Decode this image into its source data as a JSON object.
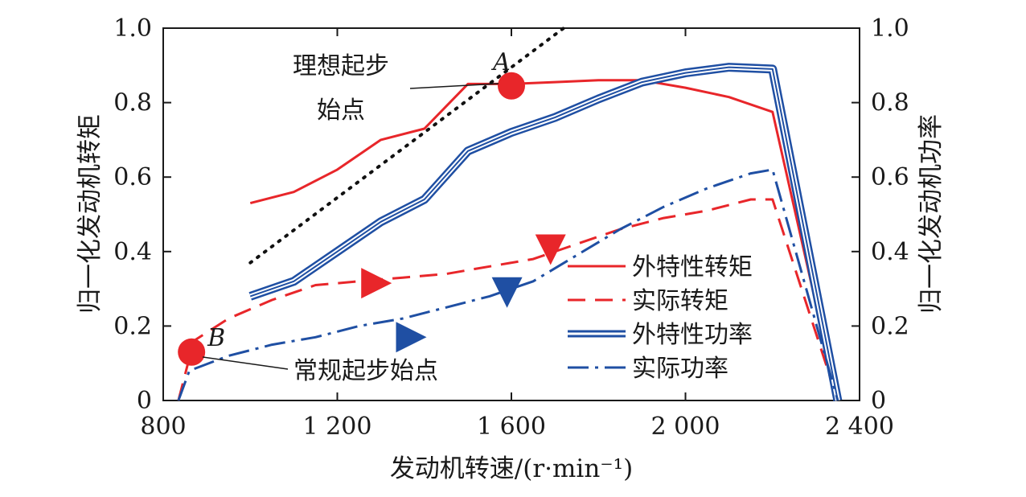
{
  "chart_data": {
    "type": "line",
    "xlabel": "发动机转速/(r·min⁻¹)",
    "ylabel_left": "归一化发动机转矩",
    "ylabel_right": "归一化发动机功率",
    "xlim": [
      800,
      2400
    ],
    "ylim": [
      0,
      1.0
    ],
    "x_ticks": [
      800,
      1200,
      1600,
      2000,
      2400
    ],
    "x_tick_labels": [
      "800",
      "1 200",
      "1 600",
      "2 000",
      "2 400"
    ],
    "y_ticks": [
      0,
      0.2,
      0.4,
      0.6,
      0.8,
      1.0
    ],
    "y_tick_labels": [
      "0",
      "0.2",
      "0.4",
      "0.6",
      "0.8",
      "1.0"
    ],
    "y_right_tick_labels": [
      "0",
      "0.2",
      "0.4",
      "0.6",
      "0.8",
      "1.0"
    ],
    "grid": false,
    "legend_placement": "lower-right",
    "colors": {
      "red": "#e8262a",
      "blue": "#1f4fa3",
      "dotted": "#111111"
    },
    "series": [
      {
        "name": "外特性转矩",
        "style": "solid",
        "color": "#e8262a",
        "x": [
          1000,
          1100,
          1200,
          1300,
          1400,
          1500,
          1600,
          1700,
          1800,
          1900,
          2000,
          2100,
          2200,
          2350
        ],
        "y": [
          0.53,
          0.56,
          0.62,
          0.7,
          0.73,
          0.85,
          0.85,
          0.855,
          0.86,
          0.86,
          0.84,
          0.815,
          0.775,
          0.0
        ]
      },
      {
        "name": "实际转矩",
        "style": "dashed",
        "color": "#e8262a",
        "x": [
          835,
          870,
          950,
          1050,
          1150,
          1250,
          1350,
          1450,
          1550,
          1650,
          1750,
          1850,
          1950,
          2050,
          2150,
          2200,
          2350
        ],
        "y": [
          0.0,
          0.16,
          0.22,
          0.27,
          0.31,
          0.32,
          0.33,
          0.34,
          0.36,
          0.38,
          0.42,
          0.46,
          0.49,
          0.51,
          0.54,
          0.54,
          0.0
        ]
      },
      {
        "name": "外特性功率",
        "style": "double",
        "color": "#1f4fa3",
        "x": [
          1000,
          1100,
          1200,
          1300,
          1400,
          1500,
          1600,
          1700,
          1800,
          1900,
          2000,
          2100,
          2200,
          2350
        ],
        "y": [
          0.28,
          0.32,
          0.4,
          0.48,
          0.54,
          0.67,
          0.72,
          0.76,
          0.81,
          0.855,
          0.88,
          0.895,
          0.89,
          0.0
        ]
      },
      {
        "name": "实际功率",
        "style": "dashdot",
        "color": "#1f4fa3",
        "x": [
          835,
          860,
          950,
          1050,
          1150,
          1250,
          1350,
          1450,
          1550,
          1650,
          1750,
          1850,
          1950,
          2050,
          2150,
          2200,
          2350
        ],
        "y": [
          0.0,
          0.08,
          0.12,
          0.15,
          0.17,
          0.2,
          0.22,
          0.25,
          0.28,
          0.32,
          0.39,
          0.46,
          0.52,
          0.57,
          0.61,
          0.62,
          0.0
        ]
      },
      {
        "name": "",
        "style": "dotted",
        "color": "#111111",
        "x": [
          1000,
          1720
        ],
        "y": [
          0.37,
          1.0
        ]
      }
    ],
    "direction_markers": [
      {
        "color": "#e8262a",
        "x": 1290,
        "y": 0.315,
        "dir": "right"
      },
      {
        "color": "#e8262a",
        "x": 1690,
        "y": 0.405,
        "dir": "down"
      },
      {
        "color": "#1f4fa3",
        "x": 1370,
        "y": 0.17,
        "dir": "right"
      },
      {
        "color": "#1f4fa3",
        "x": 1590,
        "y": 0.29,
        "dir": "down"
      }
    ],
    "points": [
      {
        "label": "A",
        "x": 1600,
        "y": 0.845
      },
      {
        "label": "B",
        "x": 865,
        "y": 0.13
      }
    ],
    "annotations": [
      {
        "text_lines": [
          "理想起步",
          "始点"
        ],
        "target": "A"
      },
      {
        "text_lines": [
          "常规起步始点"
        ],
        "target": "B"
      }
    ]
  }
}
